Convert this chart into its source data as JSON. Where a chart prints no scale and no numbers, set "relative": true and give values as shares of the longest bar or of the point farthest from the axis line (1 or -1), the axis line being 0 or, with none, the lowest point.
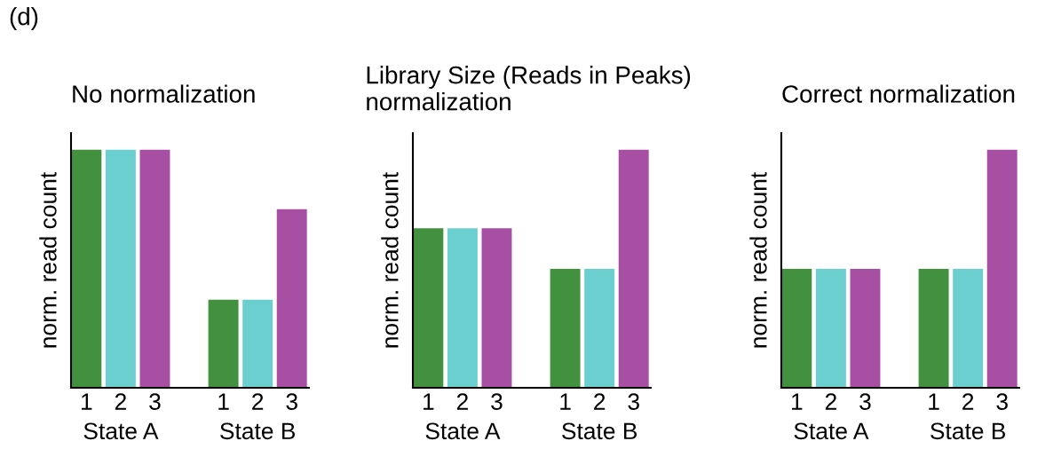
{
  "chart_data": [
    {
      "type": "bar",
      "title": "No normalization",
      "ylabel": "norm. read count",
      "relative": true,
      "tick_labels": "x",
      "grid": false,
      "categories": [
        "1",
        "2",
        "3",
        null,
        "1",
        "2",
        "3"
      ],
      "values": [
        1,
        1,
        1,
        null,
        0.37,
        0.37,
        0.75
      ],
      "colors": [
        "#41913f",
        "#6ccfcf",
        "#a64fa3",
        null,
        "#41913f",
        "#6ccfcf",
        "#a64fa3"
      ],
      "annotations": [
        "(d)",
        "State A",
        "State B"
      ]
    },
    {
      "type": "bar",
      "title": "Library Size (Reads in Peaks)\nnormalization",
      "ylabel": "norm. read count",
      "relative": true,
      "tick_labels": "x",
      "grid": false,
      "categories": [
        "1",
        "2",
        "3",
        null,
        "1",
        "2",
        "3"
      ],
      "values": [
        0.67,
        0.67,
        0.67,
        null,
        0.5,
        0.5,
        1
      ],
      "colors": [
        "#41913f",
        "#6ccfcf",
        "#a64fa3",
        null,
        "#41913f",
        "#6ccfcf",
        "#a64fa3"
      ],
      "annotations": [
        "State A",
        "State B"
      ]
    },
    {
      "type": "bar",
      "title": "Correct normalization",
      "ylabel": "norm. read count",
      "relative": true,
      "tick_labels": "x",
      "grid": false,
      "categories": [
        "1",
        "2",
        "3",
        null,
        "1",
        "2",
        "3"
      ],
      "values": [
        0.5,
        0.5,
        0.5,
        null,
        0.5,
        0.5,
        1
      ],
      "colors": [
        "#41913f",
        "#6ccfcf",
        "#a64fa3",
        null,
        "#41913f",
        "#6ccfcf",
        "#a64fa3"
      ],
      "annotations": [
        "State A",
        "State B"
      ]
    }
  ]
}
